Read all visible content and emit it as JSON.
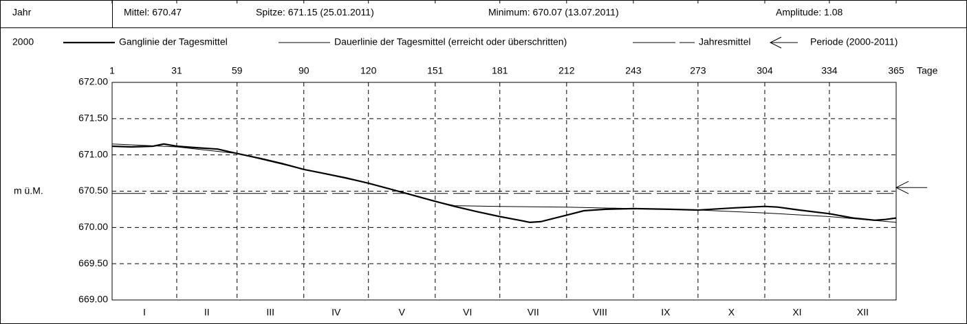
{
  "chart_data": {
    "type": "line",
    "header": {
      "label": "Jahr",
      "mean": "Mittel: 670.47",
      "peak": "Spitze: 671.15 (25.01.2011)",
      "minimum": "Minimum: 670.07 (13.07.2011)",
      "amplitude": "Amplitude: 1.08"
    },
    "year": "2000",
    "ylabel": "m ü.M.",
    "xlabel": "Tage",
    "xlim": [
      1,
      365
    ],
    "xticks": [
      1,
      31,
      59,
      90,
      120,
      151,
      181,
      212,
      243,
      273,
      304,
      334,
      365
    ],
    "ylim": [
      669,
      672
    ],
    "yticks": [
      {
        "value": 669,
        "label": "669.00"
      },
      {
        "value": 669.5,
        "label": "669.50"
      },
      {
        "value": 670,
        "label": "670.00"
      },
      {
        "value": 670.5,
        "label": "670.50"
      },
      {
        "value": 671,
        "label": "671.00"
      },
      {
        "value": 671.5,
        "label": "671.50"
      },
      {
        "value": 672,
        "label": "672.00"
      }
    ],
    "grid": true,
    "month_labels": [
      "I",
      "II",
      "III",
      "IV",
      "V",
      "VI",
      "VII",
      "VIII",
      "IX",
      "X",
      "XI",
      "XII"
    ],
    "series": [
      {
        "name": "Ganglinie der Tagesmittel",
        "color": "#000000",
        "style": "thick",
        "x": [
          1,
          10,
          20,
          25,
          31,
          40,
          50,
          59,
          70,
          80,
          90,
          100,
          110,
          120,
          130,
          140,
          151,
          160,
          170,
          181,
          190,
          195,
          200,
          212,
          220,
          230,
          243,
          260,
          273,
          290,
          304,
          310,
          320,
          334,
          345,
          355,
          360,
          365
        ],
        "values": [
          671.12,
          671.11,
          671.12,
          671.15,
          671.12,
          671.1,
          671.08,
          671.02,
          670.95,
          670.88,
          670.8,
          670.74,
          670.68,
          670.61,
          670.53,
          670.45,
          670.36,
          670.29,
          670.22,
          670.15,
          670.1,
          670.07,
          670.08,
          670.17,
          670.23,
          670.25,
          670.26,
          670.25,
          670.24,
          670.27,
          670.29,
          670.28,
          670.24,
          670.19,
          670.13,
          670.1,
          670.11,
          670.13
        ]
      },
      {
        "name": "Dauerlinie der Tagesmittel (erreicht oder überschritten)",
        "color": "#000000",
        "style": "thin",
        "x": [
          1,
          31,
          59,
          90,
          120,
          151,
          160,
          181,
          212,
          243,
          273,
          304,
          334,
          365
        ],
        "values": [
          671.15,
          671.11,
          671.02,
          670.8,
          670.61,
          670.36,
          670.3,
          670.29,
          670.28,
          670.26,
          670.24,
          670.2,
          670.15,
          670.07
        ]
      },
      {
        "name": "Jahresmittel",
        "color": "#000000",
        "style": "dashed",
        "x": [
          1,
          365
        ],
        "values": [
          670.47,
          670.47
        ]
      },
      {
        "name": "Periode (2000-2011)",
        "color": "#000000",
        "style": "arrow",
        "x": [
          365
        ],
        "values": [
          670.55
        ]
      }
    ]
  }
}
